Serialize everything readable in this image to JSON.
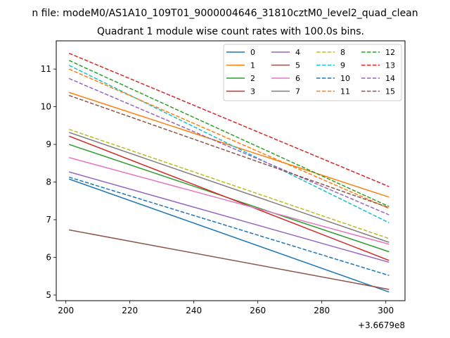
{
  "figure": {
    "suptitle": "n file: modeM0/AS1A10_109T01_9000004646_31810cztM0_level2_quad_clean",
    "x_offset_text": "+3.6679e8"
  },
  "chart_data": {
    "type": "line",
    "title": "Quadrant 1 module wise count rates with 100.0s bins.",
    "xlabel": "",
    "ylabel": "",
    "xlim": [
      197,
      306
    ],
    "ylim": [
      4.85,
      11.75
    ],
    "x_ticks": [
      200,
      220,
      240,
      260,
      280,
      300
    ],
    "x_tick_labels": [
      "200",
      "220",
      "240",
      "260",
      "280",
      "300"
    ],
    "y_ticks": [
      5,
      6,
      7,
      8,
      9,
      10,
      11
    ],
    "y_tick_labels": [
      "5",
      "6",
      "7",
      "8",
      "9",
      "10",
      "11"
    ],
    "x_offset": "+3.6679e8",
    "grid": false,
    "legend_placement": "upper right",
    "legend_columns": 4,
    "series": [
      {
        "name": "0",
        "color": "#1f77b4",
        "style": "solid",
        "x": [
          201,
          301
        ],
        "y": [
          8.08,
          5.08
        ]
      },
      {
        "name": "1",
        "color": "#ff7f0e",
        "style": "solid",
        "x": [
          201,
          301
        ],
        "y": [
          10.38,
          7.6
        ]
      },
      {
        "name": "2",
        "color": "#2ca02c",
        "style": "solid",
        "x": [
          201,
          301
        ],
        "y": [
          9.0,
          6.15
        ]
      },
      {
        "name": "3",
        "color": "#d62728",
        "style": "solid",
        "x": [
          201,
          301
        ],
        "y": [
          9.22,
          5.92
        ]
      },
      {
        "name": "4",
        "color": "#9467bd",
        "style": "solid",
        "x": [
          201,
          301
        ],
        "y": [
          8.27,
          5.87
        ]
      },
      {
        "name": "5",
        "color": "#8c564b",
        "style": "solid",
        "x": [
          201,
          301
        ],
        "y": [
          6.73,
          5.15
        ]
      },
      {
        "name": "6",
        "color": "#e377c2",
        "style": "solid",
        "x": [
          201,
          301
        ],
        "y": [
          8.65,
          6.35
        ]
      },
      {
        "name": "7",
        "color": "#7f7f7f",
        "style": "solid",
        "x": [
          201,
          301
        ],
        "y": [
          9.32,
          6.4
        ]
      },
      {
        "name": "8",
        "color": "#bcbd22",
        "style": "dashed",
        "x": [
          201,
          301
        ],
        "y": [
          9.4,
          6.5
        ]
      },
      {
        "name": "9",
        "color": "#17becf",
        "style": "dashed",
        "x": [
          201,
          301
        ],
        "y": [
          11.1,
          6.92
        ]
      },
      {
        "name": "10",
        "color": "#1f77b4",
        "style": "dashed",
        "x": [
          201,
          301
        ],
        "y": [
          8.13,
          5.52
        ]
      },
      {
        "name": "11",
        "color": "#ff7f0e",
        "style": "dashed",
        "x": [
          201,
          301
        ],
        "y": [
          11.0,
          7.3
        ]
      },
      {
        "name": "12",
        "color": "#2ca02c",
        "style": "dashed",
        "x": [
          201,
          301
        ],
        "y": [
          11.23,
          7.35
        ]
      },
      {
        "name": "13",
        "color": "#d62728",
        "style": "dashed",
        "x": [
          201,
          301
        ],
        "y": [
          11.42,
          7.88
        ]
      },
      {
        "name": "14",
        "color": "#9467bd",
        "style": "dashed",
        "x": [
          201,
          301
        ],
        "y": [
          10.75,
          7.13
        ]
      },
      {
        "name": "15",
        "color": "#8c564b",
        "style": "dashed",
        "x": [
          201,
          301
        ],
        "y": [
          10.3,
          7.32
        ]
      }
    ]
  }
}
